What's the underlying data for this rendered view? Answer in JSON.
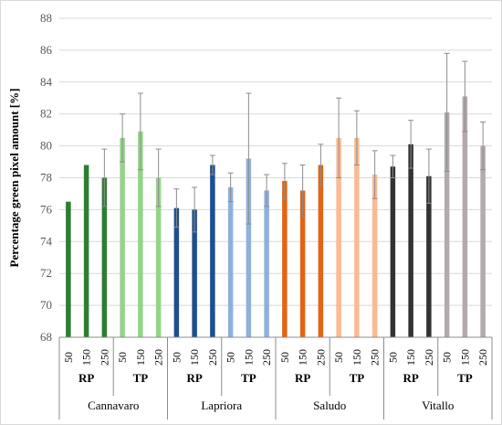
{
  "chart_data": {
    "type": "bar",
    "title": "",
    "ylabel": "Percentage green pixel amount [%]",
    "ylim": [
      68,
      88
    ],
    "yticks": [
      68,
      70,
      72,
      74,
      76,
      78,
      80,
      82,
      84,
      86,
      88
    ],
    "grid": true,
    "cultivars": [
      "Cannavaro",
      "Lapriora",
      "Saludo",
      "Vitallo"
    ],
    "treatments": [
      "RP",
      "TP"
    ],
    "levels": [
      "50",
      "150",
      "250"
    ],
    "colors": {
      "Cannavaro": {
        "RP": "#2e7d32",
        "TP": "#94d38a"
      },
      "Lapriora": {
        "RP": "#1f4e8c",
        "TP": "#8fb0dd"
      },
      "Saludo": {
        "RP": "#e36414",
        "TP": "#fbb994"
      },
      "Vitallo": {
        "RP": "#333333",
        "TP": "#b2aaab"
      }
    },
    "bars": [
      {
        "cultivar": "Cannavaro",
        "treatment": "RP",
        "level": "50",
        "value": 76.5,
        "err": null
      },
      {
        "cultivar": "Cannavaro",
        "treatment": "RP",
        "level": "150",
        "value": 78.8,
        "err": null
      },
      {
        "cultivar": "Cannavaro",
        "treatment": "RP",
        "level": "250",
        "value": 78.0,
        "err": 1.8
      },
      {
        "cultivar": "Cannavaro",
        "treatment": "TP",
        "level": "50",
        "value": 80.5,
        "err": 1.5
      },
      {
        "cultivar": "Cannavaro",
        "treatment": "TP",
        "level": "150",
        "value": 80.9,
        "err": 2.4
      },
      {
        "cultivar": "Cannavaro",
        "treatment": "TP",
        "level": "250",
        "value": 78.0,
        "err": 1.8
      },
      {
        "cultivar": "Lapriora",
        "treatment": "RP",
        "level": "50",
        "value": 76.1,
        "err": 1.2
      },
      {
        "cultivar": "Lapriora",
        "treatment": "RP",
        "level": "150",
        "value": 76.0,
        "err": 1.4
      },
      {
        "cultivar": "Lapriora",
        "treatment": "RP",
        "level": "250",
        "value": 78.8,
        "err": 0.6
      },
      {
        "cultivar": "Lapriora",
        "treatment": "TP",
        "level": "50",
        "value": 77.4,
        "err": 0.9
      },
      {
        "cultivar": "Lapriora",
        "treatment": "TP",
        "level": "150",
        "value": 79.2,
        "err": 4.1
      },
      {
        "cultivar": "Lapriora",
        "treatment": "TP",
        "level": "250",
        "value": 77.2,
        "err": 1.0
      },
      {
        "cultivar": "Saludo",
        "treatment": "RP",
        "level": "50",
        "value": 77.8,
        "err": 1.1
      },
      {
        "cultivar": "Saludo",
        "treatment": "RP",
        "level": "150",
        "value": 77.2,
        "err": 1.6
      },
      {
        "cultivar": "Saludo",
        "treatment": "RP",
        "level": "250",
        "value": 78.8,
        "err": 1.3
      },
      {
        "cultivar": "Saludo",
        "treatment": "TP",
        "level": "50",
        "value": 80.5,
        "err": 2.5
      },
      {
        "cultivar": "Saludo",
        "treatment": "TP",
        "level": "150",
        "value": 80.5,
        "err": 1.7
      },
      {
        "cultivar": "Saludo",
        "treatment": "TP",
        "level": "250",
        "value": 78.2,
        "err": 1.5
      },
      {
        "cultivar": "Vitallo",
        "treatment": "RP",
        "level": "50",
        "value": 78.7,
        "err": 0.7
      },
      {
        "cultivar": "Vitallo",
        "treatment": "RP",
        "level": "150",
        "value": 80.1,
        "err": 1.5
      },
      {
        "cultivar": "Vitallo",
        "treatment": "RP",
        "level": "250",
        "value": 78.1,
        "err": 1.7
      },
      {
        "cultivar": "Vitallo",
        "treatment": "TP",
        "level": "50",
        "value": 82.1,
        "err": 3.7
      },
      {
        "cultivar": "Vitallo",
        "treatment": "TP",
        "level": "150",
        "value": 83.1,
        "err": 2.2
      },
      {
        "cultivar": "Vitallo",
        "treatment": "TP",
        "level": "250",
        "value": 80.0,
        "err": 1.5
      }
    ]
  }
}
